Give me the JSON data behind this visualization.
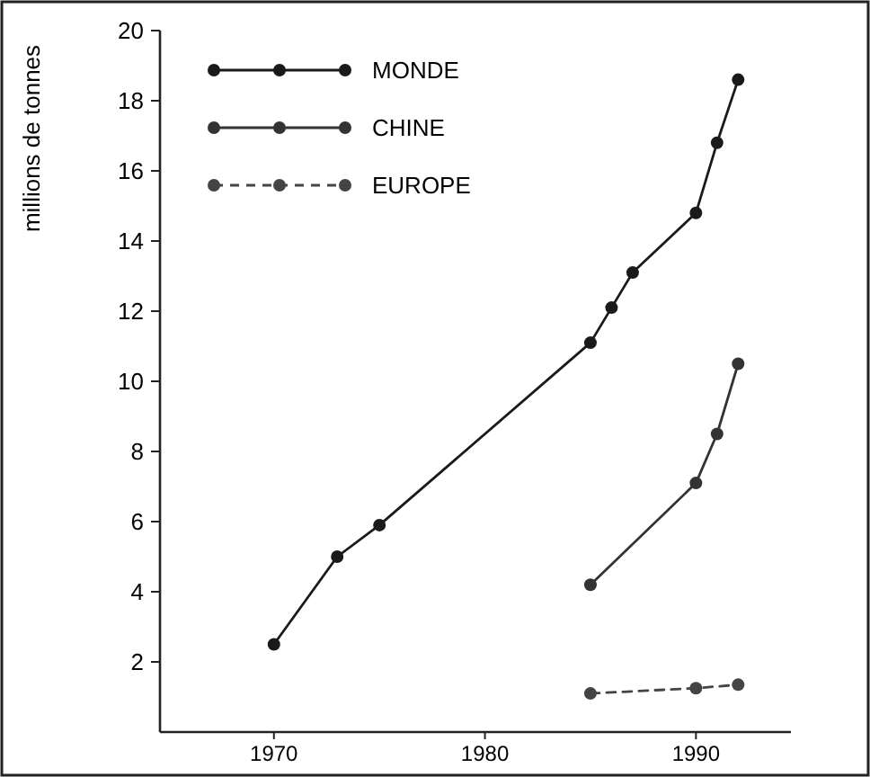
{
  "chart_data": {
    "type": "line",
    "ylabel": "millions de tonnes",
    "xlim": [
      1964.6,
      1994.5
    ],
    "xticks": [
      1970,
      1980,
      1990
    ],
    "ylim": [
      0,
      20
    ],
    "yticks": [
      2,
      4,
      6,
      8,
      10,
      12,
      14,
      16,
      18,
      20
    ],
    "grid": false,
    "legend": "top left",
    "marker": "circle",
    "series": [
      {
        "name": "MONDE",
        "color": "#1a1a1a",
        "line_style": "solid",
        "x": [
          1970,
          1973,
          1975,
          1985,
          1986,
          1987,
          1990,
          1991,
          1992
        ],
        "values": [
          2.5,
          5.0,
          5.9,
          11.1,
          12.1,
          13.1,
          14.8,
          16.8,
          18.6
        ]
      },
      {
        "name": "CHINE",
        "color": "#333333",
        "line_style": "solid",
        "x": [
          1985,
          1990,
          1991,
          1992
        ],
        "values": [
          4.2,
          7.1,
          8.5,
          10.5
        ]
      },
      {
        "name": "EUROPE",
        "color": "#444444",
        "line_style": "dashed",
        "x": [
          1985,
          1990,
          1992
        ],
        "values": [
          1.1,
          1.25,
          1.35
        ]
      }
    ]
  }
}
